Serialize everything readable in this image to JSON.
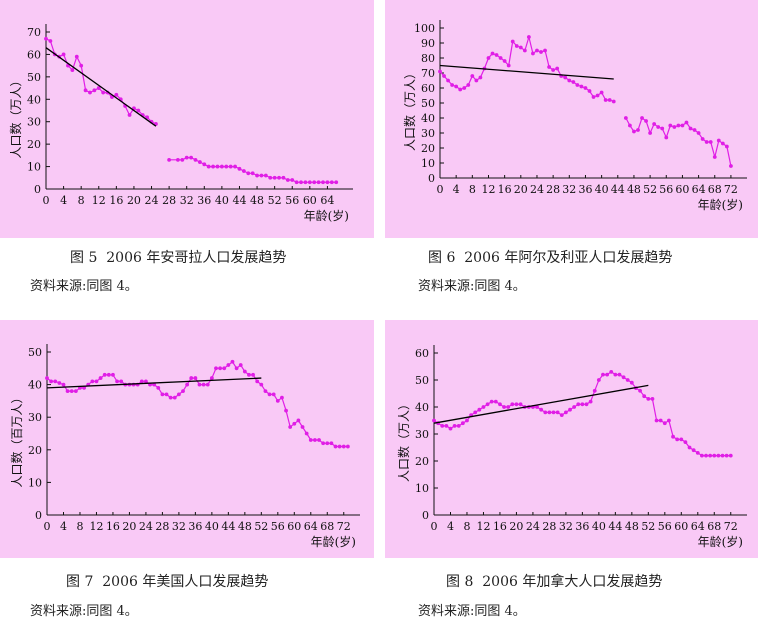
{
  "chart_data": [
    {
      "type": "scatter",
      "figure_label": "图 5",
      "title": "2006 年安哥拉人口发展趋势",
      "source": "资料来源:同图 4。",
      "ylabel": "人口数（万人）",
      "xlabel": "年龄(岁)",
      "xlim": [
        0,
        68
      ],
      "ylim": [
        0,
        70
      ],
      "xticks": [
        0,
        4,
        8,
        12,
        16,
        20,
        24,
        28,
        32,
        36,
        40,
        44,
        48,
        52,
        56,
        60,
        64
      ],
      "yticks": [
        0,
        10,
        20,
        30,
        40,
        50,
        60,
        70
      ],
      "series": [
        {
          "name": "人口数",
          "color": "#e01ee6",
          "segments": [
            {
              "x": [
                0,
                1,
                2,
                3,
                4,
                5,
                6,
                7,
                8,
                9,
                10,
                11,
                12,
                13,
                14,
                15,
                16,
                17,
                18,
                19,
                20,
                21,
                22,
                23,
                24,
                25
              ],
              "y": [
                67,
                66,
                60,
                59,
                60,
                55,
                53,
                59,
                55,
                44,
                43,
                44,
                45,
                43,
                43,
                41,
                42,
                40,
                37,
                33,
                36,
                35,
                33,
                32,
                30,
                29
              ]
            },
            {
              "x": [
                28,
                30,
                31,
                32,
                33,
                34,
                35,
                36,
                37,
                38,
                39,
                40,
                41,
                42,
                43,
                44,
                45,
                46,
                47,
                48,
                49,
                50,
                51,
                52,
                53,
                54,
                55,
                56,
                57,
                58,
                59,
                60,
                61,
                62,
                63,
                64,
                65,
                66
              ],
              "y": [
                13,
                13,
                13,
                14,
                14,
                13,
                12,
                11,
                10,
                10,
                10,
                10,
                10,
                10,
                10,
                9,
                8,
                7,
                7,
                6,
                6,
                6,
                5,
                5,
                5,
                5,
                4,
                4,
                3,
                3,
                3,
                3,
                3,
                3,
                3,
                3,
                3,
                3
              ]
            }
          ]
        }
      ],
      "trendline": {
        "x": [
          0,
          25
        ],
        "y": [
          63,
          28
        ]
      }
    },
    {
      "type": "scatter",
      "figure_label": "图 6",
      "title": "2006 年阿尔及利亚人口发展趋势",
      "source": "资料来源:同图 4。",
      "ylabel": "人口数（万人）",
      "xlabel": "年龄(岁)",
      "xlim": [
        0,
        74
      ],
      "ylim": [
        0,
        100
      ],
      "xticks": [
        0,
        4,
        8,
        12,
        16,
        20,
        24,
        28,
        32,
        36,
        40,
        44,
        48,
        52,
        56,
        60,
        64,
        68,
        72
      ],
      "yticks": [
        0,
        10,
        20,
        30,
        40,
        50,
        60,
        70,
        80,
        90,
        100
      ],
      "series": [
        {
          "name": "人口数",
          "color": "#e01ee6",
          "segments": [
            {
              "x": [
                0,
                1,
                2,
                3,
                4,
                5,
                6,
                7,
                8,
                9,
                10,
                11,
                12,
                13,
                14,
                15,
                16,
                17,
                18,
                19,
                20,
                21,
                22,
                23,
                24,
                25,
                26,
                27,
                28,
                29,
                30,
                31,
                32,
                33,
                34,
                35,
                36,
                37,
                38,
                39,
                40,
                41,
                42,
                43
              ],
              "y": [
                71,
                68,
                65,
                62,
                61,
                59,
                60,
                62,
                68,
                65,
                67,
                73,
                80,
                83,
                82,
                80,
                78,
                75,
                91,
                88,
                87,
                85,
                94,
                83,
                85,
                84,
                85,
                74,
                72,
                73,
                68,
                67,
                65,
                64,
                62,
                61,
                60,
                58,
                54,
                55,
                57,
                52,
                52,
                51
              ]
            },
            {
              "x": [
                46,
                47,
                48,
                49,
                50,
                51,
                52,
                53,
                54,
                55,
                56,
                57,
                58,
                59,
                60,
                61,
                62,
                63,
                64,
                65,
                66,
                67,
                68,
                69,
                70,
                71,
                72
              ],
              "y": [
                40,
                35,
                31,
                32,
                40,
                38,
                30,
                36,
                34,
                33,
                27,
                35,
                34,
                35,
                35,
                37,
                33,
                32,
                30,
                26,
                24,
                24,
                14,
                25,
                23,
                21,
                8
              ]
            }
          ]
        }
      ],
      "trendline": {
        "x": [
          0,
          43
        ],
        "y": [
          75,
          66
        ]
      }
    },
    {
      "type": "scatter",
      "figure_label": "图 7",
      "title": "2006 年美国人口发展趋势",
      "source": "资料来源:同图 4。",
      "ylabel": "人口数（百万人）",
      "xlabel": "年龄(岁)",
      "xlim": [
        0,
        74
      ],
      "ylim": [
        0,
        50
      ],
      "xticks": [
        0,
        4,
        8,
        12,
        16,
        20,
        24,
        28,
        32,
        36,
        40,
        44,
        48,
        52,
        56,
        60,
        64,
        68,
        72
      ],
      "yticks": [
        0,
        10,
        20,
        30,
        40,
        50
      ],
      "series": [
        {
          "name": "人口数",
          "color": "#e01ee6",
          "segments": [
            {
              "x": [
                0,
                1,
                2,
                3,
                4,
                5,
                6,
                7,
                8,
                9,
                10,
                11,
                12,
                13,
                14,
                15,
                16,
                17,
                18,
                19,
                20,
                21,
                22,
                23,
                24,
                25,
                26,
                27,
                28,
                29,
                30,
                31,
                32,
                33,
                34,
                35,
                36,
                37,
                38,
                39,
                40,
                41,
                42,
                43,
                44,
                45,
                46,
                47,
                48,
                49,
                50,
                51,
                52,
                53,
                54,
                55,
                56,
                57,
                58,
                59,
                60,
                61,
                62,
                63,
                64,
                65,
                66,
                67,
                68,
                69,
                70,
                71,
                72,
                73
              ],
              "y": [
                42,
                41,
                41,
                40.5,
                40,
                38,
                38,
                38,
                39,
                39,
                40,
                41,
                41,
                42,
                43,
                43,
                43,
                41,
                41,
                40,
                40,
                40,
                40,
                41,
                41,
                40,
                40,
                39,
                37,
                37,
                36,
                36,
                37,
                38,
                40,
                42,
                42,
                40,
                40,
                40,
                42,
                45,
                45,
                45,
                46,
                47,
                45,
                46,
                44,
                43,
                43,
                41,
                40,
                38,
                37,
                37,
                35,
                36,
                32,
                27,
                28,
                29,
                27,
                25,
                23,
                23,
                23,
                22,
                22,
                22,
                21,
                21,
                21,
                21
              ]
            }
          ]
        }
      ],
      "trendline": {
        "x": [
          0,
          52
        ],
        "y": [
          39,
          42
        ]
      }
    },
    {
      "type": "scatter",
      "figure_label": "图 8",
      "title": "2006 年加拿大人口发展趋势",
      "source": "资料来源:同图 4。",
      "ylabel": "人口数（万人）",
      "xlabel": "年龄(岁)",
      "xlim": [
        0,
        74
      ],
      "ylim": [
        0,
        60
      ],
      "xticks": [
        0,
        4,
        8,
        12,
        16,
        20,
        24,
        28,
        32,
        36,
        40,
        44,
        48,
        52,
        56,
        60,
        64,
        68,
        72
      ],
      "yticks": [
        0,
        10,
        20,
        30,
        40,
        50,
        60
      ],
      "series": [
        {
          "name": "人口数",
          "color": "#e01ee6",
          "segments": [
            {
              "x": [
                0,
                1,
                2,
                3,
                4,
                5,
                6,
                7,
                8,
                9,
                10,
                11,
                12,
                13,
                14,
                15,
                16,
                17,
                18,
                19,
                20,
                21,
                22,
                23,
                24,
                25,
                26,
                27,
                28,
                29,
                30,
                31,
                32,
                33,
                34,
                35,
                36,
                37,
                38,
                39,
                40,
                41,
                42,
                43,
                44,
                45,
                46,
                47,
                48,
                49,
                50,
                51,
                52,
                53,
                54,
                55,
                56,
                57,
                58,
                59,
                60,
                61,
                62,
                63,
                64,
                65,
                66,
                67,
                68,
                69,
                70,
                71,
                72
              ],
              "y": [
                35,
                34,
                33,
                33,
                32,
                33,
                33,
                34,
                35,
                37,
                38,
                39,
                40,
                41,
                42,
                42,
                41,
                40,
                40,
                41,
                41,
                41,
                40,
                40,
                40,
                40,
                39,
                38,
                38,
                38,
                38,
                37,
                38,
                39,
                40,
                41,
                41,
                41,
                42,
                46,
                50,
                52,
                52,
                53,
                52,
                52,
                51,
                50,
                49,
                47,
                46,
                44,
                43,
                43,
                35,
                35,
                34,
                35,
                29,
                28,
                28,
                27,
                25,
                24,
                23,
                22,
                22,
                22,
                22,
                22,
                22,
                22,
                22
              ]
            }
          ]
        }
      ],
      "trendline": {
        "x": [
          0,
          52
        ],
        "y": [
          34,
          48
        ]
      }
    }
  ]
}
